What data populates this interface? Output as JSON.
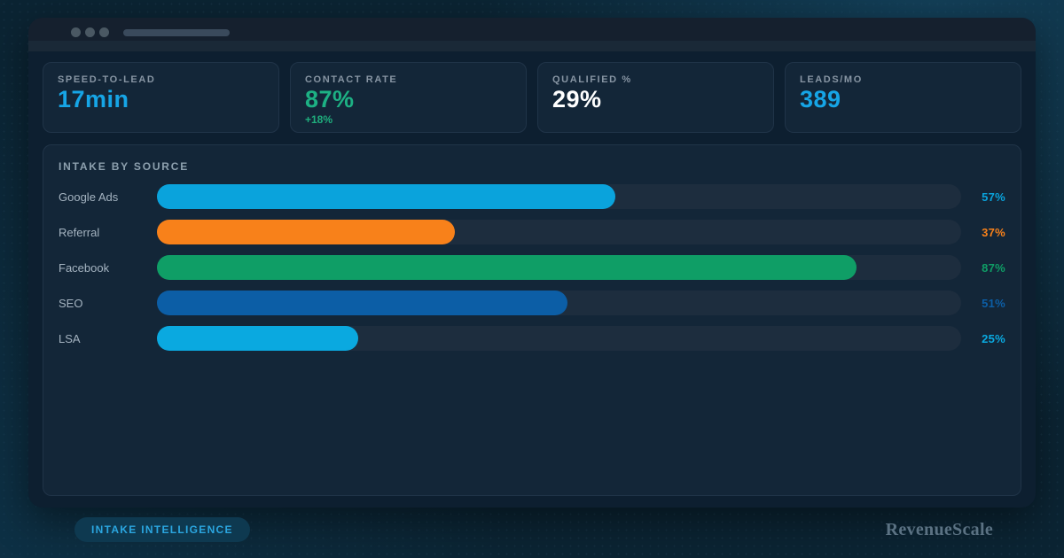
{
  "kpis": [
    {
      "label": "SPEED-TO-LEAD",
      "value": "17min",
      "delta": "",
      "color": "#16a5e6"
    },
    {
      "label": "CONTACT RATE",
      "value": "87%",
      "delta": "+18%",
      "color": "#1db184"
    },
    {
      "label": "QUALIFIED %",
      "value": "29%",
      "delta": "",
      "color": "#ffffff"
    },
    {
      "label": "LEADS/MO",
      "value": "389",
      "delta": "",
      "color": "#16a5e6"
    }
  ],
  "chart_data": {
    "type": "bar",
    "orientation": "horizontal",
    "title": "INTAKE BY SOURCE",
    "categories": [
      "Google Ads",
      "Referral",
      "Facebook",
      "SEO",
      "LSA"
    ],
    "values": [
      57,
      37,
      87,
      51,
      25
    ],
    "value_labels": [
      "57%",
      "37%",
      "87%",
      "51%",
      "25%"
    ],
    "bar_colors": [
      "#0aa3dc",
      "#f8811a",
      "#0f9e66",
      "#0c5ea6",
      "#0aa9e0"
    ],
    "track_color": "#1d2d3e",
    "xlim": [
      0,
      100
    ],
    "grid": false,
    "legend": false
  },
  "footer": {
    "badge": "INTAKE INTELLIGENCE",
    "brand": "RevenueScale"
  }
}
